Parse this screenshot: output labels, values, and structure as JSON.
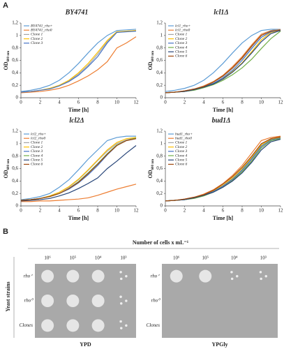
{
  "panel_a": {
    "label": "A"
  },
  "chart_data": [
    {
      "type": "line",
      "title": "BY4741",
      "xlabel": "Time [h]",
      "ylabel": "OD",
      "ylabel_subscript": "600 nm",
      "x": [
        0,
        1,
        2,
        3,
        4,
        5,
        6,
        7,
        8,
        9,
        10,
        11,
        12
      ],
      "xlim": [
        0,
        12
      ],
      "xticks": [
        0,
        2,
        4,
        6,
        8,
        10,
        12
      ],
      "ylim": [
        0,
        1.2
      ],
      "yticks": [
        0,
        {
          "value": 0.2,
          "label": "0,2"
        },
        {
          "value": 0.4,
          "label": "0,4"
        },
        {
          "value": 0.6,
          "label": "0,6"
        },
        {
          "value": 0.8,
          "label": "0,8"
        },
        1,
        {
          "value": 1.2,
          "label": "1,2"
        }
      ],
      "series": [
        {
          "name": "BY4741_rho+",
          "color": "#5b9bd5",
          "values": [
            0.1,
            0.12,
            0.15,
            0.2,
            0.28,
            0.4,
            0.55,
            0.72,
            0.88,
            1.0,
            1.08,
            1.09,
            1.1
          ]
        },
        {
          "name": "BY4741_rho0",
          "color": "#ed7d31",
          "values": [
            0.08,
            0.09,
            0.1,
            0.12,
            0.15,
            0.2,
            0.27,
            0.35,
            0.45,
            0.58,
            0.8,
            0.88,
            0.98
          ]
        },
        {
          "name": "Clone 1",
          "color": "#a5a5a5",
          "values": [
            0.09,
            0.1,
            0.12,
            0.15,
            0.2,
            0.27,
            0.38,
            0.52,
            0.7,
            0.9,
            1.05,
            1.07,
            1.08
          ]
        },
        {
          "name": "Clone 2",
          "color": "#ffc000",
          "values": [
            0.09,
            0.1,
            0.12,
            0.15,
            0.2,
            0.28,
            0.4,
            0.55,
            0.73,
            0.92,
            1.06,
            1.07,
            1.08
          ]
        },
        {
          "name": "Clone 3",
          "color": "#4472c4",
          "values": [
            0.09,
            0.1,
            0.12,
            0.14,
            0.19,
            0.26,
            0.36,
            0.5,
            0.66,
            0.88,
            1.05,
            1.06,
            1.07
          ]
        }
      ]
    },
    {
      "type": "line",
      "title": "lcl1Δ",
      "xlabel": "Time [h]",
      "ylabel": "OD",
      "ylabel_subscript": "600 nm",
      "x": [
        0,
        1,
        2,
        3,
        4,
        5,
        6,
        7,
        8,
        9,
        10,
        11,
        12
      ],
      "xlim": [
        0,
        12
      ],
      "xticks": [
        0,
        2,
        4,
        6,
        8,
        10,
        12
      ],
      "ylim": [
        0,
        1.2
      ],
      "yticks": [
        0,
        {
          "value": 0.2,
          "label": "0,2"
        },
        {
          "value": 0.4,
          "label": "0,4"
        },
        {
          "value": 0.6,
          "label": "0,6"
        },
        {
          "value": 0.8,
          "label": "0,8"
        },
        1,
        {
          "value": 1.2,
          "label": "1,2"
        }
      ],
      "series": [
        {
          "name": "lcl1_rho+",
          "color": "#5b9bd5",
          "values": [
            0.1,
            0.12,
            0.15,
            0.2,
            0.28,
            0.4,
            0.55,
            0.72,
            0.88,
            1.0,
            1.08,
            1.1,
            1.1
          ]
        },
        {
          "name": "lcl1_rho0",
          "color": "#ed7d31",
          "values": [
            0.08,
            0.09,
            0.11,
            0.14,
            0.19,
            0.26,
            0.36,
            0.5,
            0.66,
            0.85,
            1.02,
            1.08,
            1.1
          ]
        },
        {
          "name": "Clone 1",
          "color": "#a5a5a5",
          "values": [
            0.08,
            0.09,
            0.11,
            0.14,
            0.18,
            0.25,
            0.34,
            0.47,
            0.63,
            0.82,
            1.0,
            1.08,
            1.1
          ]
        },
        {
          "name": "Clone 2",
          "color": "#ffc000",
          "values": [
            0.08,
            0.09,
            0.1,
            0.13,
            0.17,
            0.23,
            0.31,
            0.42,
            0.56,
            0.74,
            0.93,
            1.05,
            1.08
          ]
        },
        {
          "name": "Clone 3",
          "color": "#4472c4",
          "values": [
            0.08,
            0.09,
            0.1,
            0.13,
            0.17,
            0.23,
            0.32,
            0.44,
            0.6,
            0.79,
            0.97,
            1.06,
            1.09
          ]
        },
        {
          "name": "Clone 4",
          "color": "#70ad47",
          "values": [
            0.08,
            0.09,
            0.1,
            0.12,
            0.16,
            0.21,
            0.28,
            0.37,
            0.48,
            0.62,
            0.79,
            0.95,
            1.07
          ]
        },
        {
          "name": "Clone 5",
          "color": "#264478",
          "values": [
            0.08,
            0.09,
            0.1,
            0.13,
            0.17,
            0.22,
            0.3,
            0.41,
            0.55,
            0.72,
            0.9,
            1.03,
            1.08
          ]
        },
        {
          "name": "Clone 6",
          "color": "#9e480e",
          "values": [
            0.08,
            0.09,
            0.11,
            0.14,
            0.18,
            0.25,
            0.35,
            0.48,
            0.64,
            0.83,
            1.0,
            1.07,
            1.09
          ]
        }
      ]
    },
    {
      "type": "line",
      "title": "lcl2Δ",
      "xlabel": "Time [h]",
      "ylabel": "OD",
      "ylabel_subscript": "600 nm",
      "x": [
        0,
        1,
        2,
        3,
        4,
        5,
        6,
        7,
        8,
        9,
        10,
        11,
        12
      ],
      "xlim": [
        0,
        12
      ],
      "xticks": [
        0,
        2,
        4,
        6,
        8,
        10,
        12
      ],
      "ylim": [
        0,
        1.2
      ],
      "yticks": [
        0,
        {
          "value": 0.2,
          "label": "0,2"
        },
        {
          "value": 0.4,
          "label": "0,4"
        },
        {
          "value": 0.6,
          "label": "0,6"
        },
        {
          "value": 0.8,
          "label": "0,8"
        },
        1,
        {
          "value": 1.2,
          "label": "1,2"
        }
      ],
      "series": [
        {
          "name": "lcl2_rho+",
          "color": "#5b9bd5",
          "values": [
            0.1,
            0.12,
            0.15,
            0.2,
            0.3,
            0.42,
            0.58,
            0.75,
            0.9,
            1.05,
            1.1,
            1.12,
            1.12
          ]
        },
        {
          "name": "lcl2_rho0",
          "color": "#ed7d31",
          "values": [
            0.07,
            0.07,
            0.08,
            0.08,
            0.09,
            0.1,
            0.11,
            0.13,
            0.17,
            0.22,
            0.27,
            0.31,
            0.35
          ]
        },
        {
          "name": "Clone 1",
          "color": "#a5a5a5",
          "values": [
            0.09,
            0.1,
            0.12,
            0.16,
            0.22,
            0.3,
            0.42,
            0.57,
            0.73,
            0.88,
            1.0,
            1.06,
            1.1
          ]
        },
        {
          "name": "Clone 2",
          "color": "#ffc000",
          "values": [
            0.09,
            0.1,
            0.12,
            0.16,
            0.22,
            0.31,
            0.43,
            0.58,
            0.74,
            0.9,
            1.02,
            1.08,
            1.1
          ]
        },
        {
          "name": "Clone 3",
          "color": "#4472c4",
          "values": [
            0.09,
            0.1,
            0.12,
            0.15,
            0.2,
            0.27,
            0.37,
            0.5,
            0.65,
            0.82,
            0.97,
            1.05,
            1.08
          ]
        },
        {
          "name": "Clone 4",
          "color": "#70ad47",
          "values": [
            0.09,
            0.1,
            0.12,
            0.15,
            0.2,
            0.28,
            0.39,
            0.53,
            0.68,
            0.84,
            0.98,
            1.05,
            1.09
          ]
        },
        {
          "name": "Clone 5",
          "color": "#264478",
          "values": [
            0.08,
            0.09,
            0.1,
            0.12,
            0.16,
            0.21,
            0.28,
            0.36,
            0.45,
            0.6,
            0.72,
            0.85,
            0.97
          ]
        },
        {
          "name": "Clone 6",
          "color": "#9e480e",
          "values": [
            0.09,
            0.1,
            0.12,
            0.15,
            0.2,
            0.28,
            0.38,
            0.52,
            0.67,
            0.83,
            0.97,
            1.05,
            1.08
          ]
        }
      ]
    },
    {
      "type": "line",
      "title": "bud1Δ",
      "xlabel": "Time [h]",
      "ylabel": "OD",
      "ylabel_subscript": "600 nm",
      "x": [
        0,
        1,
        2,
        3,
        4,
        5,
        6,
        7,
        8,
        9,
        10,
        11,
        12
      ],
      "xlim": [
        0,
        12
      ],
      "xticks": [
        0,
        2,
        4,
        6,
        8,
        10,
        12
      ],
      "ylim": [
        0,
        1.2
      ],
      "yticks": [
        0,
        {
          "value": 0.2,
          "label": "0,2"
        },
        {
          "value": 0.4,
          "label": "0,4"
        },
        {
          "value": 0.6,
          "label": "0,6"
        },
        {
          "value": 0.8,
          "label": "0,8"
        },
        1,
        {
          "value": 1.2,
          "label": "1,2"
        }
      ],
      "series": [
        {
          "name": "bud1_rho+",
          "color": "#5b9bd5",
          "values": [
            0.08,
            0.09,
            0.1,
            0.13,
            0.17,
            0.23,
            0.32,
            0.43,
            0.57,
            0.75,
            0.98,
            1.08,
            1.1
          ]
        },
        {
          "name": "bud1_rho0",
          "color": "#ed7d31",
          "values": [
            0.08,
            0.09,
            0.11,
            0.14,
            0.19,
            0.26,
            0.36,
            0.49,
            0.65,
            0.85,
            1.05,
            1.1,
            1.12
          ]
        },
        {
          "name": "Clone 1",
          "color": "#a5a5a5",
          "values": [
            0.08,
            0.09,
            0.1,
            0.13,
            0.17,
            0.23,
            0.31,
            0.42,
            0.56,
            0.74,
            0.95,
            1.06,
            1.09
          ]
        },
        {
          "name": "Clone 2",
          "color": "#ffc000",
          "values": [
            0.08,
            0.09,
            0.1,
            0.13,
            0.18,
            0.24,
            0.33,
            0.45,
            0.6,
            0.78,
            0.98,
            1.07,
            1.1
          ]
        },
        {
          "name": "Clone 3",
          "color": "#4472c4",
          "values": [
            0.08,
            0.09,
            0.1,
            0.13,
            0.17,
            0.23,
            0.32,
            0.43,
            0.58,
            0.76,
            0.96,
            1.06,
            1.09
          ]
        },
        {
          "name": "Clone 4",
          "color": "#70ad47",
          "values": [
            0.08,
            0.09,
            0.1,
            0.12,
            0.16,
            0.22,
            0.3,
            0.41,
            0.55,
            0.72,
            0.93,
            1.05,
            1.08
          ]
        },
        {
          "name": "Clone 5",
          "color": "#264478",
          "values": [
            0.08,
            0.09,
            0.1,
            0.13,
            0.17,
            0.22,
            0.3,
            0.4,
            0.53,
            0.7,
            0.9,
            1.03,
            1.07
          ]
        },
        {
          "name": "Clone 6",
          "color": "#9e480e",
          "values": [
            0.08,
            0.09,
            0.11,
            0.14,
            0.18,
            0.25,
            0.35,
            0.47,
            0.62,
            0.8,
            1.0,
            1.08,
            1.11
          ]
        }
      ]
    }
  ],
  "panel_b": {
    "label": "B",
    "header": "Number of cells x mL⁻¹",
    "dilutions": [
      "10⁶",
      "10⁵",
      "10⁴",
      "10³"
    ],
    "row_axis": "Yeast strains",
    "rows": [
      "rho⁺",
      "rho⁰",
      "Clones"
    ],
    "plates": [
      "YPD",
      "YPGly"
    ]
  }
}
